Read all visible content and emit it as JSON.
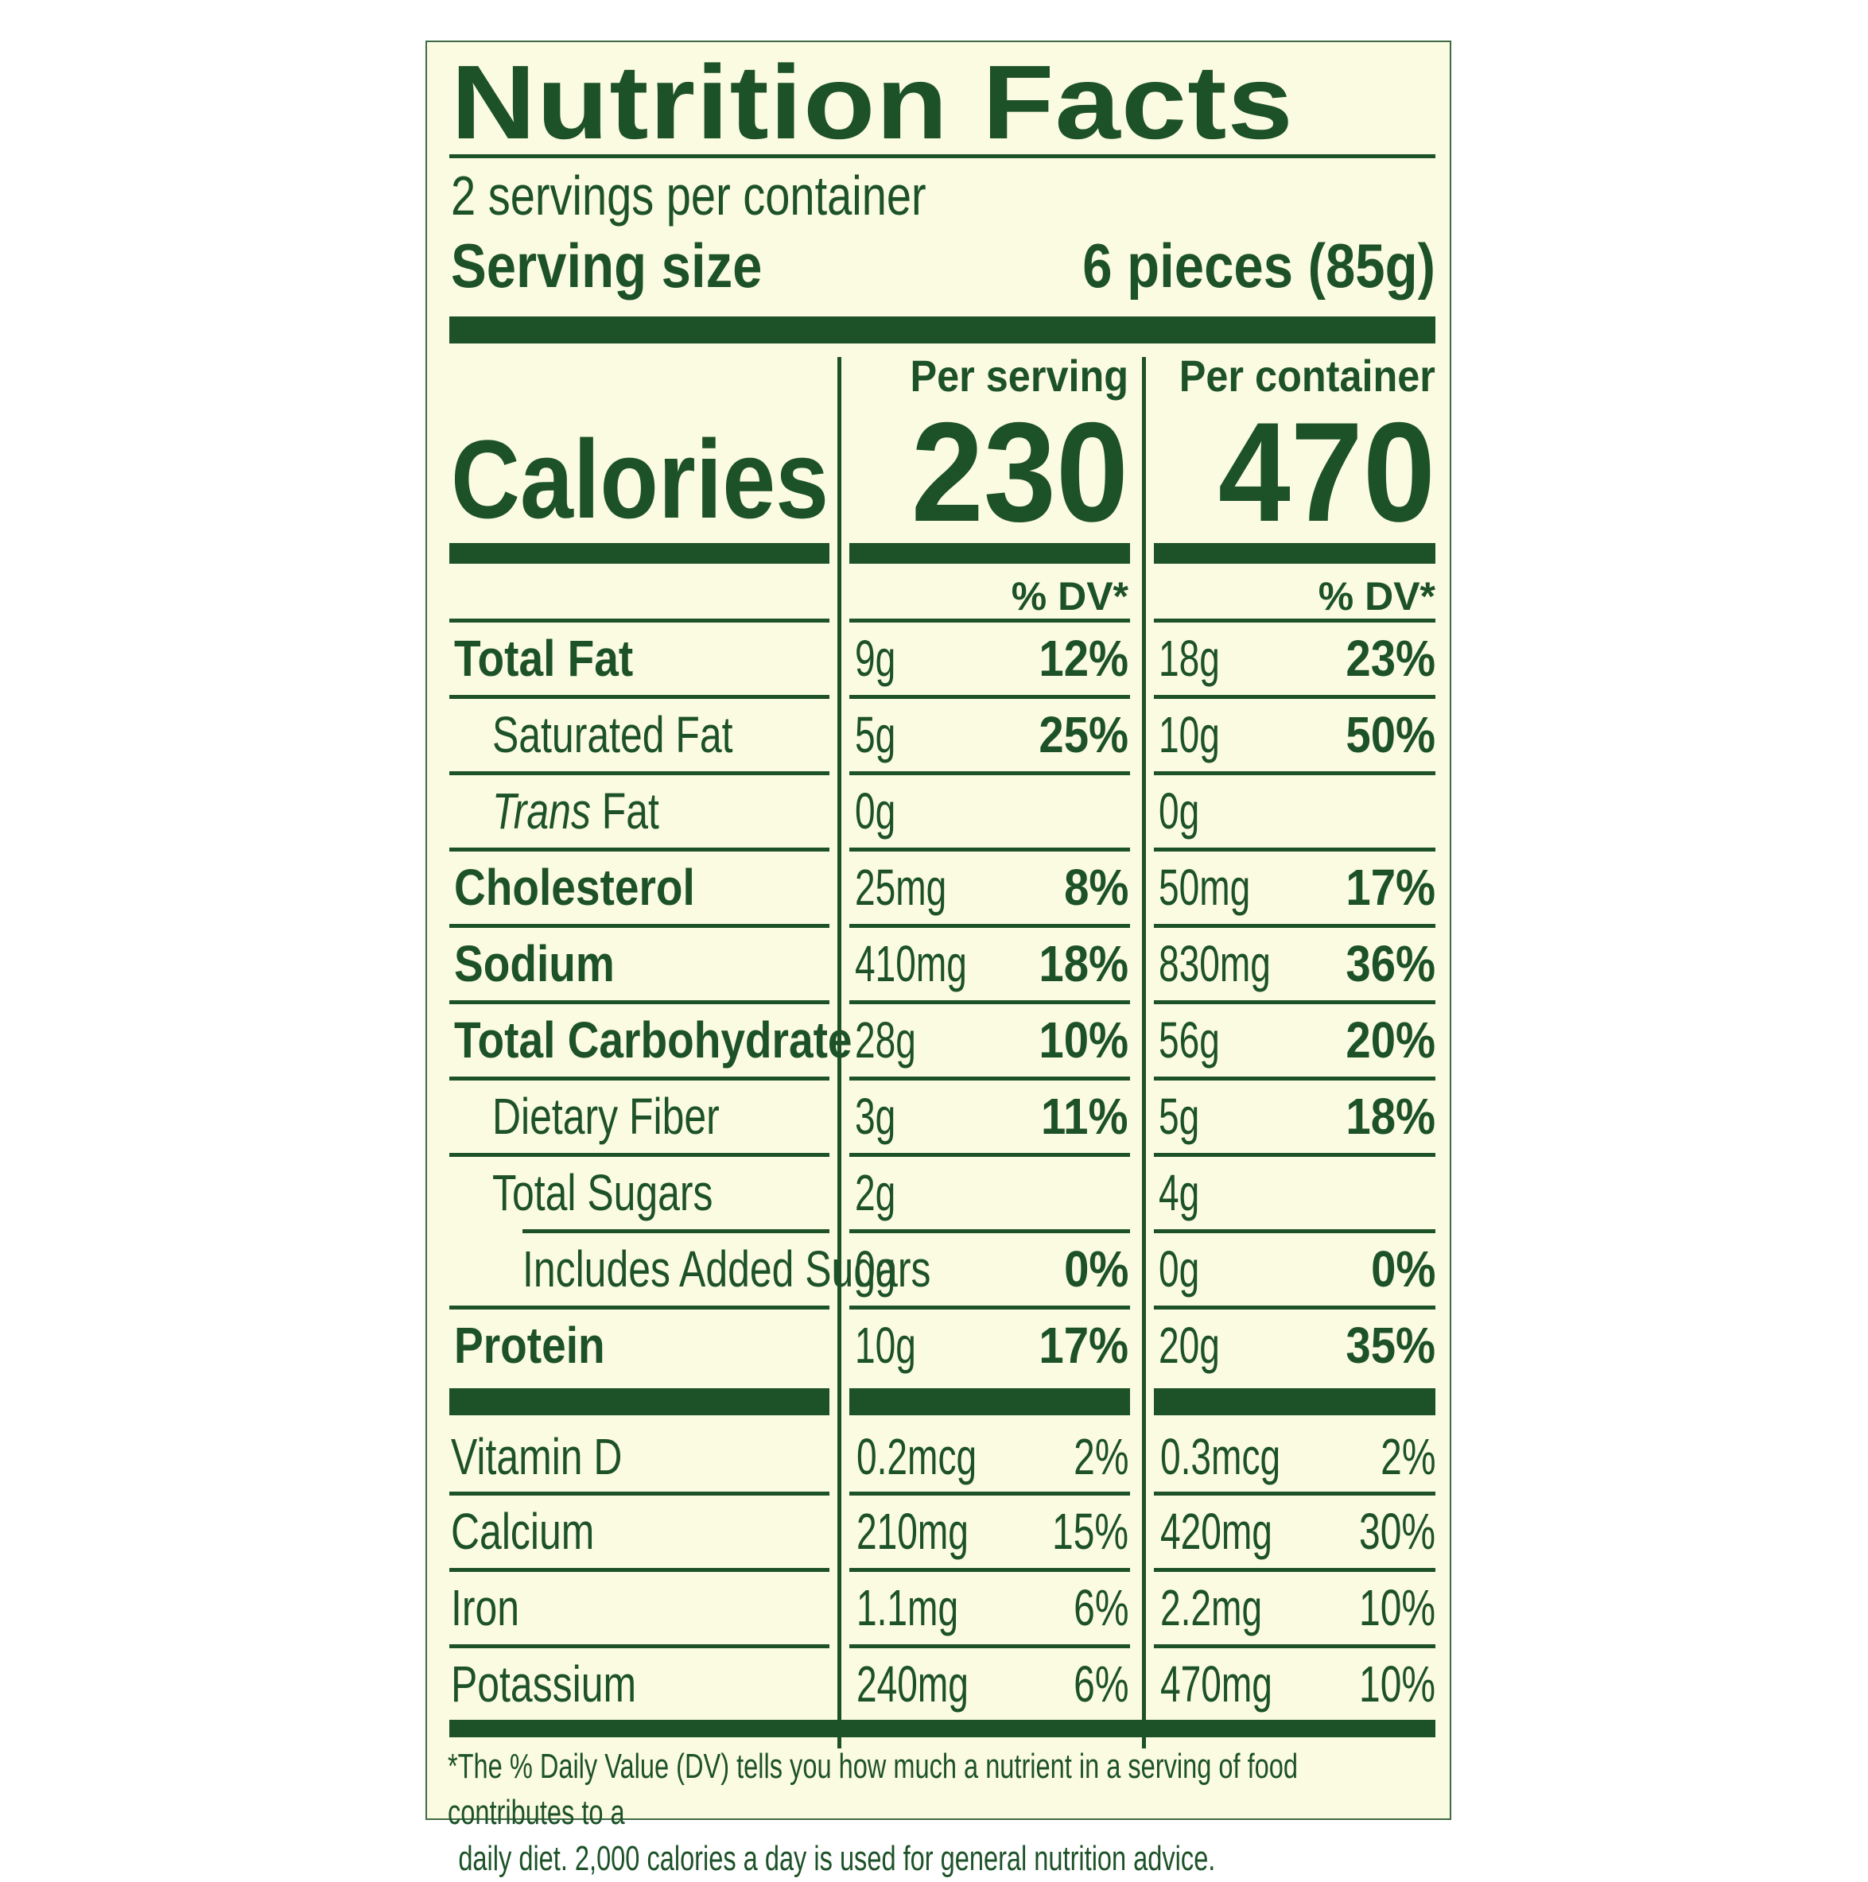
{
  "title": "Nutrition Facts",
  "servings_per_container": "2 servings per container",
  "serving_size_label": "Serving size",
  "serving_size_value": "6 pieces (85g)",
  "columns": {
    "per_serving": "Per serving",
    "per_container": "Per container"
  },
  "calories": {
    "label": "Calories",
    "per_serving": "230",
    "per_container": "470"
  },
  "dv_header": "% DV*",
  "nutrients": [
    {
      "name": "Total Fat",
      "serving_amount": "9g",
      "serving_dv": "12%",
      "container_amount": "18g",
      "container_dv": "23%"
    },
    {
      "name": "Saturated Fat",
      "serving_amount": "5g",
      "serving_dv": "25%",
      "container_amount": "10g",
      "container_dv": "50%"
    },
    {
      "name_prefix": "Trans",
      "name": " Fat",
      "serving_amount": "0g",
      "serving_dv": "",
      "container_amount": "0g",
      "container_dv": ""
    },
    {
      "name": "Cholesterol",
      "serving_amount": "25mg",
      "serving_dv": "8%",
      "container_amount": "50mg",
      "container_dv": "17%"
    },
    {
      "name": "Sodium",
      "serving_amount": "410mg",
      "serving_dv": "18%",
      "container_amount": "830mg",
      "container_dv": "36%"
    },
    {
      "name": "Total Carbohydrate",
      "serving_amount": "28g",
      "serving_dv": "10%",
      "container_amount": "56g",
      "container_dv": "20%"
    },
    {
      "name": "Dietary Fiber",
      "serving_amount": "3g",
      "serving_dv": "11%",
      "container_amount": "5g",
      "container_dv": "18%"
    },
    {
      "name": "Total Sugars",
      "serving_amount": "2g",
      "serving_dv": "",
      "container_amount": "4g",
      "container_dv": ""
    },
    {
      "name": "Includes Added Sugars",
      "serving_amount": "0g",
      "serving_dv": "0%",
      "container_amount": "0g",
      "container_dv": "0%"
    },
    {
      "name": "Protein",
      "serving_amount": "10g",
      "serving_dv": "17%",
      "container_amount": "20g",
      "container_dv": "35%"
    }
  ],
  "vitamins": [
    {
      "name": "Vitamin D",
      "serving_amount": "0.2mcg",
      "serving_dv": "2%",
      "container_amount": "0.3mcg",
      "container_dv": "2%"
    },
    {
      "name": "Calcium",
      "serving_amount": "210mg",
      "serving_dv": "15%",
      "container_amount": "420mg",
      "container_dv": "30%"
    },
    {
      "name": "Iron",
      "serving_amount": "1.1mg",
      "serving_dv": "6%",
      "container_amount": "2.2mg",
      "container_dv": "10%"
    },
    {
      "name": "Potassium",
      "serving_amount": "240mg",
      "serving_dv": "6%",
      "container_amount": "470mg",
      "container_dv": "10%"
    }
  ],
  "footnote": {
    "line1": "*The % Daily Value (DV) tells you how much a nutrient in a serving of food contributes to a",
    "line2": "daily diet. 2,000 calories a day is used for general nutrition advice."
  },
  "colors": {
    "text": "#1d5228",
    "background": "#fbfbe1",
    "border": "#3f6b45"
  }
}
